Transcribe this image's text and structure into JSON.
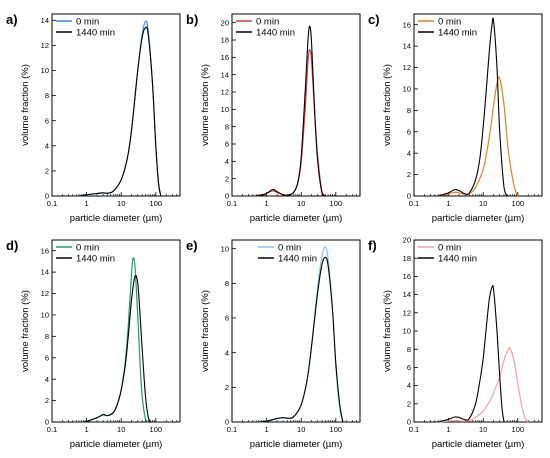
{
  "chart_data": [
    {
      "type": "line",
      "panel_label": "a)",
      "xscale": "log",
      "xlim": [
        0.1,
        500
      ],
      "ylim": [
        0,
        14.5
      ],
      "xticks": [
        "0.1",
        "1",
        "10",
        "100"
      ],
      "yticks": [
        0,
        2,
        4,
        6,
        8,
        10,
        12,
        14
      ],
      "xlabel": "particle diameter (µm)",
      "ylabel": "volume fraction (%)",
      "legend": "top-left",
      "series": [
        {
          "name": "0 min",
          "color": "#3b8ed8",
          "x": [
            0.6,
            1,
            2,
            3,
            4,
            6,
            10,
            15,
            20,
            30,
            40,
            50,
            60,
            80,
            100,
            120,
            140
          ],
          "y": [
            0,
            0.1,
            0.2,
            0.25,
            0.22,
            0.4,
            1.3,
            3,
            5.3,
            10,
            12.8,
            13.9,
            13.2,
            9,
            4,
            1,
            0
          ]
        },
        {
          "name": "1440 min",
          "color": "#000000",
          "x": [
            0.6,
            1,
            2,
            3,
            4,
            6,
            10,
            15,
            20,
            30,
            40,
            50,
            60,
            80,
            100,
            120,
            140
          ],
          "y": [
            0,
            0.1,
            0.2,
            0.25,
            0.22,
            0.4,
            1.3,
            3,
            5.3,
            10,
            12.6,
            13.4,
            12.9,
            9,
            4,
            1,
            0
          ]
        }
      ]
    },
    {
      "type": "line",
      "panel_label": "b)",
      "xscale": "log",
      "xlim": [
        0.1,
        500
      ],
      "ylim": [
        0,
        21
      ],
      "xticks": [
        "0.1",
        "1",
        "10",
        "100"
      ],
      "yticks": [
        0,
        2,
        4,
        6,
        8,
        10,
        12,
        14,
        16,
        18,
        20
      ],
      "xlabel": "particle diameter (µm)",
      "ylabel": "volume fraction (%)",
      "legend": "top-left",
      "series": [
        {
          "name": "0 min",
          "color": "#d83a3a",
          "x": [
            0.5,
            0.8,
            1,
            1.5,
            2,
            3,
            4,
            6,
            8,
            10,
            13,
            16,
            18,
            20,
            25,
            30,
            40,
            50
          ],
          "y": [
            0,
            0.15,
            0.3,
            0.6,
            0.4,
            0.15,
            0.1,
            0.4,
            1.5,
            4,
            10,
            16,
            16.8,
            15.5,
            9,
            4.5,
            0.5,
            0
          ]
        },
        {
          "name": "1440 min",
          "color": "#000000",
          "x": [
            0.5,
            0.8,
            1,
            1.5,
            2,
            3,
            4,
            6,
            8,
            10,
            13,
            16,
            18,
            20,
            25,
            30,
            40,
            50
          ],
          "y": [
            0,
            0.15,
            0.3,
            0.75,
            0.5,
            0.15,
            0.1,
            0.4,
            1.6,
            4.5,
            12,
            18.5,
            19.5,
            17.5,
            9,
            4,
            0.3,
            0
          ]
        }
      ]
    },
    {
      "type": "line",
      "panel_label": "c)",
      "xscale": "log",
      "xlim": [
        0.1,
        500
      ],
      "ylim": [
        0,
        17
      ],
      "xticks": [
        "0.1",
        "1",
        "10",
        "100"
      ],
      "yticks": [
        0,
        2,
        4,
        6,
        8,
        10,
        12,
        14,
        16
      ],
      "xlabel": "particle diameter (µm)",
      "ylabel": "volume fraction (%)",
      "legend": "top-left",
      "series": [
        {
          "name": "0 min",
          "color": "#e8801a",
          "x": [
            0.5,
            1,
            1.5,
            2,
            3,
            4,
            6,
            10,
            15,
            20,
            25,
            30,
            40,
            50,
            60,
            80,
            100
          ],
          "y": [
            0,
            0.2,
            0.35,
            0.3,
            0.15,
            0.2,
            0.8,
            2.5,
            5.5,
            8.5,
            10.5,
            11,
            8.5,
            5,
            3,
            0.8,
            0
          ]
        },
        {
          "name": "1440 min",
          "color": "#000000",
          "x": [
            0.5,
            1,
            1.5,
            2,
            3,
            4,
            6,
            8,
            10,
            12,
            15,
            18,
            20,
            25,
            30,
            40,
            50
          ],
          "y": [
            0,
            0.3,
            0.6,
            0.5,
            0.2,
            0.3,
            1.5,
            3.5,
            6.5,
            9.5,
            13.5,
            16,
            16.3,
            12,
            6,
            0.8,
            0
          ]
        }
      ]
    },
    {
      "type": "line",
      "panel_label": "d)",
      "xscale": "log",
      "xlim": [
        0.1,
        500
      ],
      "ylim": [
        0,
        17
      ],
      "xticks": [
        "0.1",
        "1",
        "10",
        "100"
      ],
      "yticks": [
        0,
        2,
        4,
        6,
        8,
        10,
        12,
        14,
        16
      ],
      "xlabel": "particle diameter (µm)",
      "ylabel": "volume fraction (%)",
      "legend": "top-left",
      "series": [
        {
          "name": "0 min",
          "color": "#1a9e6e",
          "x": [
            0.8,
            1,
            2,
            3,
            4,
            6,
            8,
            10,
            13,
            16,
            20,
            22,
            25,
            30,
            35,
            40,
            50,
            60
          ],
          "y": [
            0,
            0.05,
            0.4,
            0.65,
            0.6,
            0.9,
            1.8,
            3,
            5.5,
            9,
            14,
            15.3,
            14.5,
            10,
            5.5,
            2.5,
            0.3,
            0
          ]
        },
        {
          "name": "1440 min",
          "color": "#000000",
          "x": [
            0.8,
            1,
            2,
            3,
            4,
            6,
            8,
            10,
            13,
            16,
            20,
            25,
            30,
            35,
            40,
            50,
            60,
            70
          ],
          "y": [
            0,
            0.05,
            0.4,
            0.7,
            0.6,
            0.9,
            1.8,
            3,
            5.2,
            8,
            11.5,
            13.6,
            13,
            10,
            7,
            2.5,
            0.5,
            0
          ]
        }
      ]
    },
    {
      "type": "line",
      "panel_label": "e)",
      "xscale": "log",
      "xlim": [
        0.1,
        500
      ],
      "ylim": [
        0,
        10.5
      ],
      "xticks": [
        "0.1",
        "1",
        "10",
        "100"
      ],
      "yticks": [
        0,
        2,
        4,
        6,
        8,
        10
      ],
      "xlabel": "particle diameter (µm)",
      "ylabel": "volume fraction (%)",
      "legend": "top-right",
      "series": [
        {
          "name": "0 min",
          "color": "#7cc8ec",
          "x": [
            0.5,
            1,
            2,
            3,
            4,
            6,
            10,
            15,
            20,
            30,
            40,
            50,
            60,
            80,
            100,
            130,
            160
          ],
          "y": [
            0,
            0.05,
            0.2,
            0.25,
            0.22,
            0.3,
            1,
            2.5,
            4.5,
            7.8,
            9.6,
            10.1,
            9.4,
            6.5,
            3.2,
            0.8,
            0
          ]
        },
        {
          "name": "1440 min",
          "color": "#000000",
          "x": [
            0.5,
            1,
            2,
            3,
            4,
            6,
            10,
            15,
            20,
            30,
            40,
            50,
            60,
            80,
            100,
            130,
            160
          ],
          "y": [
            0,
            0.05,
            0.2,
            0.25,
            0.22,
            0.3,
            1,
            2.5,
            4.4,
            7.5,
            9.1,
            9.5,
            9,
            6.5,
            3.4,
            1,
            0
          ]
        }
      ]
    },
    {
      "type": "line",
      "panel_label": "f)",
      "xscale": "log",
      "xlim": [
        0.1,
        500
      ],
      "ylim": [
        0,
        20
      ],
      "xticks": [
        "0.1",
        "1",
        "10",
        "100"
      ],
      "yticks": [
        0,
        2,
        4,
        6,
        8,
        10,
        12,
        14,
        16,
        18,
        20
      ],
      "xlabel": "particle diameter (µm)",
      "ylabel": "volume fraction (%)",
      "legend": "top-left",
      "series": [
        {
          "name": "0 min",
          "color": "#f4a0a8",
          "x": [
            0.5,
            1,
            1.5,
            2,
            3,
            4,
            6,
            10,
            15,
            20,
            30,
            40,
            50,
            60,
            80,
            100,
            130,
            160,
            200
          ],
          "y": [
            0,
            0.1,
            0.15,
            0.12,
            0.1,
            0.15,
            0.5,
            1.2,
            2.2,
            3.2,
            5,
            6.8,
            7.8,
            8.1,
            6.5,
            4.2,
            1.8,
            0.5,
            0
          ]
        },
        {
          "name": "1440 min",
          "color": "#000000",
          "x": [
            0.5,
            1,
            1.5,
            2,
            3,
            4,
            6,
            8,
            10,
            12,
            15,
            18,
            20,
            25,
            30,
            35,
            40
          ],
          "y": [
            0,
            0.3,
            0.55,
            0.5,
            0.25,
            0.4,
            2,
            4.5,
            7,
            10,
            13.5,
            14.8,
            14.5,
            10,
            5,
            1.5,
            0
          ]
        }
      ]
    }
  ]
}
